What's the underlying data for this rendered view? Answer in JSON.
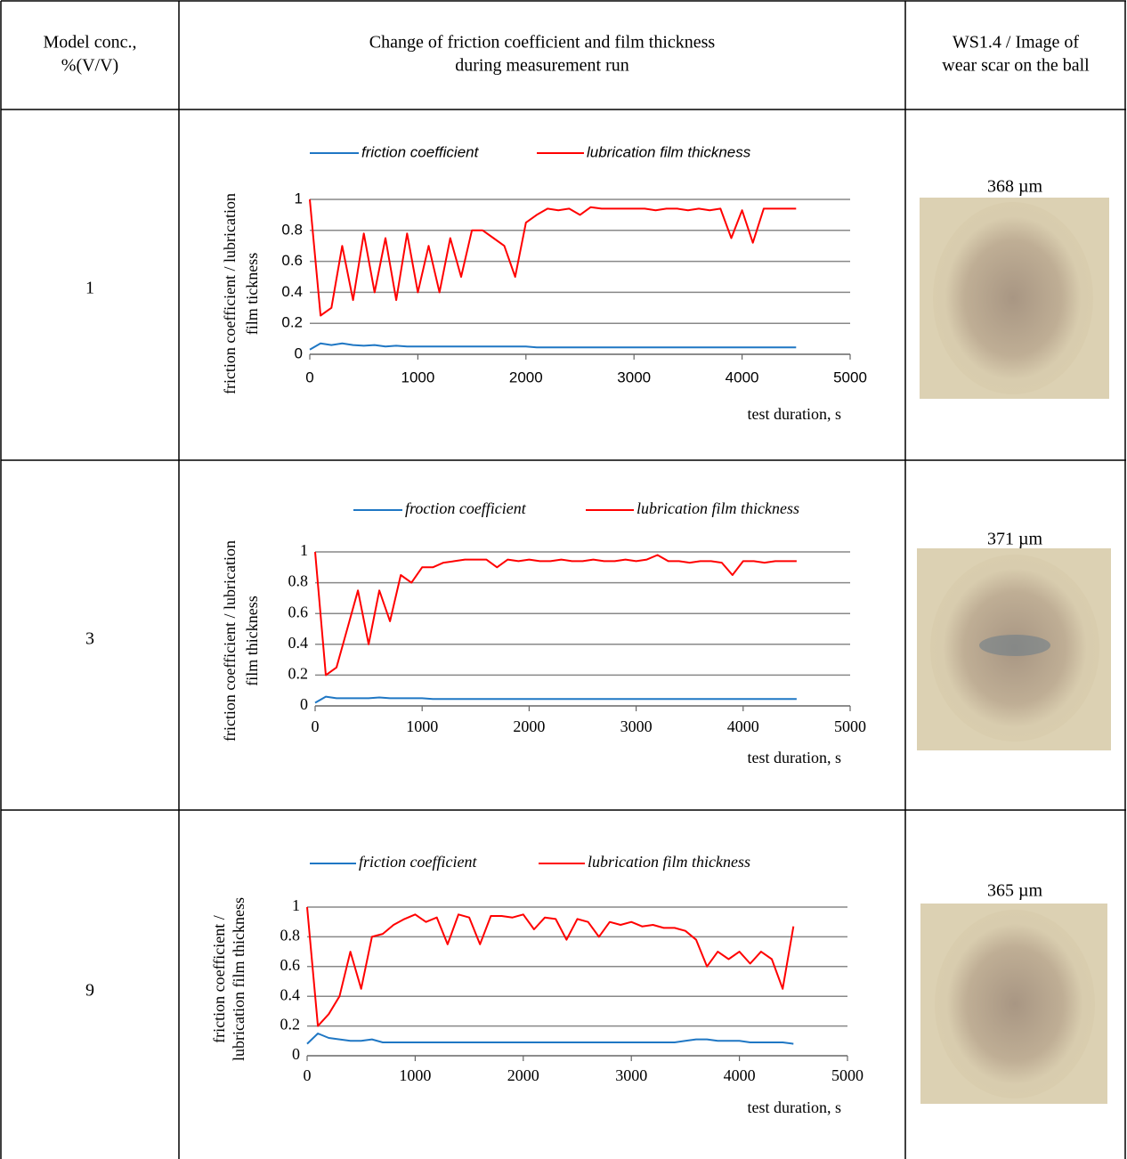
{
  "table": {
    "headers": [
      [
        "Model conc.,",
        "%(V/V)"
      ],
      [
        "Change of friction coefficient and film thickness",
        "during measurement run"
      ],
      [
        "WS1.4 / Image of",
        "wear scar on the ball"
      ]
    ],
    "rows": [
      [
        "1",
        "368 µm"
      ],
      [
        "3",
        "371 µm"
      ],
      [
        "9",
        "365 µm"
      ]
    ]
  },
  "chart_data": [
    {
      "type": "line",
      "x_label": "test duration, s",
      "y_label": [
        "friction coefficient / lubrication",
        "film tickness"
      ],
      "x": [
        0,
        100,
        200,
        300,
        400,
        500,
        600,
        700,
        800,
        900,
        1000,
        1100,
        1200,
        1300,
        1400,
        1500,
        1600,
        1700,
        1800,
        1900,
        2000,
        2100,
        2200,
        2300,
        2400,
        2500,
        2600,
        2700,
        2800,
        2900,
        3000,
        3100,
        3200,
        3300,
        3400,
        3500,
        3600,
        3700,
        3800,
        3900,
        4000,
        4100,
        4200,
        4300,
        4400,
        4500
      ],
      "series": [
        {
          "name": "friction coefficient",
          "color": "#1f77c4",
          "values": [
            0.03,
            0.07,
            0.06,
            0.07,
            0.06,
            0.055,
            0.06,
            0.05,
            0.055,
            0.05,
            0.05,
            0.05,
            0.05,
            0.05,
            0.05,
            0.05,
            0.05,
            0.05,
            0.05,
            0.05,
            0.05,
            0.045,
            0.045,
            0.045,
            0.045,
            0.045,
            0.045,
            0.045,
            0.045,
            0.045,
            0.045,
            0.045,
            0.045,
            0.045,
            0.045,
            0.045,
            0.045,
            0.045,
            0.045,
            0.045,
            0.045,
            0.045,
            0.045,
            0.045,
            0.045,
            0.045
          ]
        },
        {
          "name": "lubrication film thickness",
          "color": "#ff0000",
          "values": [
            1.0,
            0.25,
            0.3,
            0.7,
            0.35,
            0.78,
            0.4,
            0.75,
            0.35,
            0.78,
            0.4,
            0.7,
            0.4,
            0.75,
            0.5,
            0.8,
            0.8,
            0.75,
            0.7,
            0.5,
            0.85,
            0.9,
            0.94,
            0.93,
            0.94,
            0.9,
            0.95,
            0.94,
            0.94,
            0.94,
            0.94,
            0.94,
            0.93,
            0.94,
            0.94,
            0.93,
            0.94,
            0.93,
            0.94,
            0.75,
            0.93,
            0.72,
            0.94,
            0.94,
            0.94,
            0.94
          ]
        }
      ],
      "xlim": [
        0,
        5000
      ],
      "xticks": [
        0,
        1000,
        2000,
        3000,
        4000,
        5000
      ],
      "ylim": [
        0,
        1
      ],
      "yticks": [
        0,
        0.2,
        0.4,
        0.6,
        0.8,
        1
      ],
      "grid": true
    },
    {
      "type": "line",
      "x_label": "test duration, s",
      "y_label": [
        "friction coefficient / lubrication",
        "film thickness"
      ],
      "x": [
        0,
        100,
        200,
        300,
        400,
        500,
        600,
        700,
        800,
        900,
        1000,
        1100,
        1200,
        1300,
        1400,
        1500,
        1600,
        1700,
        1800,
        1900,
        2000,
        2100,
        2200,
        2300,
        2400,
        2500,
        2600,
        2700,
        2800,
        2900,
        3000,
        3100,
        3200,
        3300,
        3400,
        3500,
        3600,
        3700,
        3800,
        3900,
        4000,
        4100,
        4200,
        4300,
        4400,
        4500
      ],
      "series": [
        {
          "name": "froction coefficient",
          "color": "#1f77c4",
          "values": [
            0.02,
            0.06,
            0.05,
            0.05,
            0.05,
            0.05,
            0.055,
            0.05,
            0.05,
            0.05,
            0.05,
            0.045,
            0.045,
            0.045,
            0.045,
            0.045,
            0.045,
            0.045,
            0.045,
            0.045,
            0.045,
            0.045,
            0.045,
            0.045,
            0.045,
            0.045,
            0.045,
            0.045,
            0.045,
            0.045,
            0.045,
            0.045,
            0.045,
            0.045,
            0.045,
            0.045,
            0.045,
            0.045,
            0.045,
            0.045,
            0.045,
            0.045,
            0.045,
            0.045,
            0.045,
            0.045
          ]
        },
        {
          "name": "lubrication film thickness",
          "color": "#ff0000",
          "values": [
            1.0,
            0.2,
            0.25,
            0.5,
            0.75,
            0.4,
            0.75,
            0.55,
            0.85,
            0.8,
            0.9,
            0.9,
            0.93,
            0.94,
            0.95,
            0.95,
            0.95,
            0.9,
            0.95,
            0.94,
            0.95,
            0.94,
            0.94,
            0.95,
            0.94,
            0.94,
            0.95,
            0.94,
            0.94,
            0.95,
            0.94,
            0.95,
            0.98,
            0.94,
            0.94,
            0.93,
            0.94,
            0.94,
            0.93,
            0.85,
            0.94,
            0.94,
            0.93,
            0.94,
            0.94,
            0.94
          ]
        }
      ],
      "xlim": [
        0,
        5000
      ],
      "xticks": [
        0,
        1000,
        2000,
        3000,
        4000,
        5000
      ],
      "ylim": [
        0,
        1
      ],
      "yticks": [
        0,
        0.2,
        0.4,
        0.6,
        0.8,
        1
      ],
      "grid": true
    },
    {
      "type": "line",
      "x_label": "test duration, s",
      "y_label": [
        "friction coefficient /",
        "lubrication film thickness"
      ],
      "x": [
        0,
        100,
        200,
        300,
        400,
        500,
        600,
        700,
        800,
        900,
        1000,
        1100,
        1200,
        1300,
        1400,
        1500,
        1600,
        1700,
        1800,
        1900,
        2000,
        2100,
        2200,
        2300,
        2400,
        2500,
        2600,
        2700,
        2800,
        2900,
        3000,
        3100,
        3200,
        3300,
        3400,
        3500,
        3600,
        3700,
        3800,
        3900,
        4000,
        4100,
        4200,
        4300,
        4400,
        4500
      ],
      "series": [
        {
          "name": "friction coefficient",
          "color": "#1f77c4",
          "values": [
            0.08,
            0.15,
            0.12,
            0.11,
            0.1,
            0.1,
            0.11,
            0.09,
            0.09,
            0.09,
            0.09,
            0.09,
            0.09,
            0.09,
            0.09,
            0.09,
            0.09,
            0.09,
            0.09,
            0.09,
            0.09,
            0.09,
            0.09,
            0.09,
            0.09,
            0.09,
            0.09,
            0.09,
            0.09,
            0.09,
            0.09,
            0.09,
            0.09,
            0.09,
            0.09,
            0.1,
            0.11,
            0.11,
            0.1,
            0.1,
            0.1,
            0.09,
            0.09,
            0.09,
            0.09,
            0.08
          ]
        },
        {
          "name": "lubrication film thickness",
          "color": "#ff0000",
          "values": [
            1.0,
            0.2,
            0.28,
            0.4,
            0.7,
            0.45,
            0.8,
            0.82,
            0.88,
            0.92,
            0.95,
            0.9,
            0.93,
            0.75,
            0.95,
            0.93,
            0.75,
            0.94,
            0.94,
            0.93,
            0.95,
            0.85,
            0.93,
            0.92,
            0.78,
            0.92,
            0.9,
            0.8,
            0.9,
            0.88,
            0.9,
            0.87,
            0.88,
            0.86,
            0.86,
            0.84,
            0.78,
            0.6,
            0.7,
            0.65,
            0.7,
            0.62,
            0.7,
            0.65,
            0.45,
            0.87
          ]
        }
      ],
      "xlim": [
        0,
        5000
      ],
      "xticks": [
        0,
        1000,
        2000,
        3000,
        4000,
        5000
      ],
      "ylim": [
        0,
        1
      ],
      "yticks": [
        0,
        0.2,
        0.4,
        0.6,
        0.8,
        1
      ],
      "grid": true
    }
  ]
}
